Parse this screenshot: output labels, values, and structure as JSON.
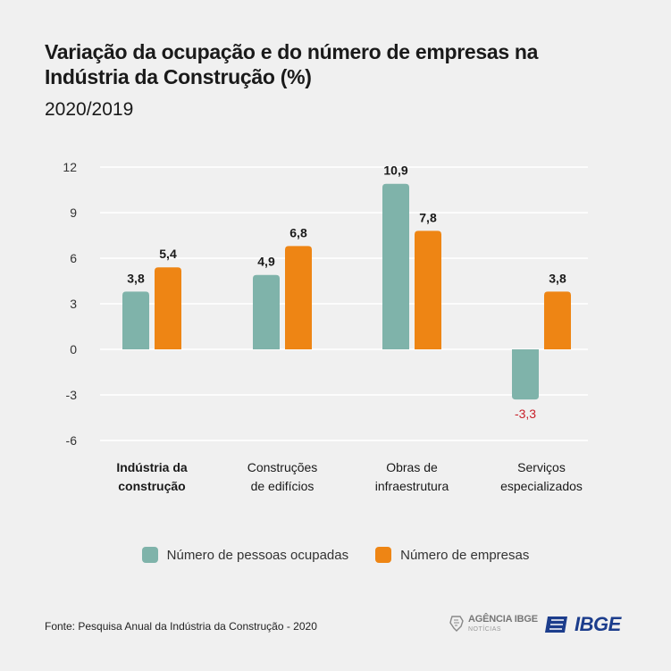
{
  "header": {
    "title": "Variação da ocupação e do número de empresas na Indústria da Construção (%)",
    "subtitle": "2020/2019"
  },
  "chart_data": {
    "type": "bar",
    "categories": [
      [
        "Indústria da",
        "construção"
      ],
      [
        "Construções",
        "de edifícios"
      ],
      [
        "Obras de",
        "infraestrutura"
      ],
      [
        "Serviços",
        "especializados"
      ]
    ],
    "highlight_category": 0,
    "series": [
      {
        "name": "Número de pessoas ocupadas",
        "color": "#7fb3aa",
        "values": [
          3.8,
          4.9,
          10.9,
          -3.3
        ],
        "labels": [
          "3,8",
          "4,9",
          "10,9",
          "-3,3"
        ]
      },
      {
        "name": "Número de empresas",
        "color": "#ee8514",
        "values": [
          5.4,
          6.8,
          7.8,
          3.8
        ],
        "labels": [
          "5,4",
          "6,8",
          "7,8",
          "3,8"
        ]
      }
    ],
    "negative_label_color": "#c8202a",
    "ylim": [
      -6,
      12
    ],
    "yticks": [
      "12",
      "9",
      "6",
      "3",
      "0",
      "-3",
      "-6"
    ],
    "ytick_values": [
      12,
      9,
      6,
      3,
      0,
      -3,
      -6
    ],
    "grid": true,
    "legend_position": "bottom"
  },
  "footer": {
    "source": "Fonte: Pesquisa Anual da Indústria da Construção - 2020",
    "agencia_main": "AGÊNCIA IBGE",
    "agencia_sub": "NOTÍCIAS",
    "ibge": "IBGE"
  }
}
